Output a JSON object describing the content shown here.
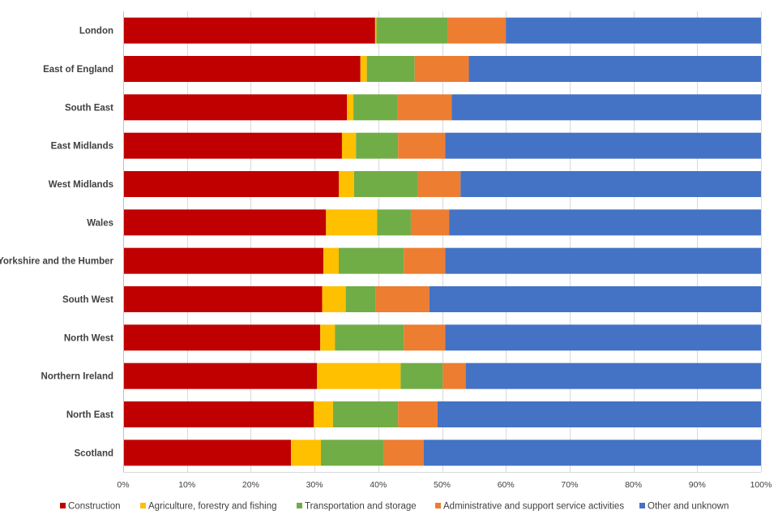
{
  "chart_data": {
    "type": "bar",
    "orientation": "horizontal",
    "stacked": true,
    "title": "",
    "xlabel": "",
    "ylabel": "",
    "xlim": [
      0,
      100
    ],
    "x_ticks": [
      "0%",
      "10%",
      "20%",
      "30%",
      "40%",
      "50%",
      "60%",
      "70%",
      "80%",
      "90%",
      "100%"
    ],
    "grid": true,
    "legend_position": "bottom",
    "categories": [
      "London",
      "East of England",
      "South East",
      "East Midlands",
      "West Midlands",
      "Wales",
      "Yorkshire and the Humber",
      "South West",
      "North West",
      "Northern Ireland",
      "North East",
      "Scotland"
    ],
    "series": [
      {
        "name": "Construction",
        "color": "#C00000",
        "values": [
          39.5,
          37.2,
          35.1,
          34.3,
          33.8,
          31.8,
          31.4,
          31.2,
          30.9,
          30.4,
          29.9,
          26.3
        ]
      },
      {
        "name": "Agriculture, forestry and fishing",
        "color": "#FFC000",
        "values": [
          0.2,
          1.0,
          1.0,
          2.2,
          2.4,
          8.0,
          2.4,
          3.7,
          2.3,
          13.1,
          3.0,
          4.7
        ]
      },
      {
        "name": "Transportation and storage",
        "color": "#70AD47",
        "values": [
          11.2,
          7.5,
          6.9,
          6.6,
          10.0,
          5.3,
          10.2,
          4.7,
          10.8,
          6.6,
          10.2,
          9.9
        ]
      },
      {
        "name": "Administrative and support service activities",
        "color": "#ED7D31",
        "values": [
          9.1,
          8.5,
          8.5,
          7.4,
          6.7,
          6.0,
          6.5,
          8.4,
          6.5,
          3.6,
          6.2,
          6.2
        ]
      },
      {
        "name": "Other and unknown",
        "color": "#4472C4",
        "values": [
          40.0,
          45.8,
          48.5,
          49.5,
          47.1,
          48.9,
          49.5,
          52.0,
          49.5,
          46.3,
          50.7,
          52.9
        ]
      }
    ]
  }
}
